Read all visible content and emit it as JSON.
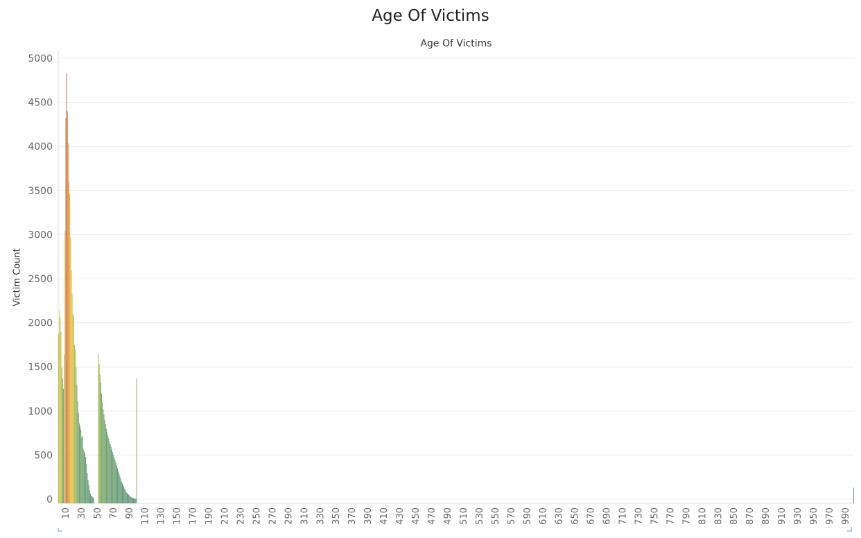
{
  "page": {
    "title": "Age Of Victims"
  },
  "chart_data": {
    "type": "bar",
    "title": "Age Of Victims",
    "subtitle": "Age Of Victims",
    "xlabel": "",
    "ylabel": "Victim Count",
    "ylim": [
      0,
      5000
    ],
    "y_ticks": [
      0,
      500,
      1000,
      1500,
      2000,
      2500,
      3000,
      3500,
      4000,
      4500,
      5000
    ],
    "x_tick_labels": [
      "10",
      "30",
      "50",
      "70",
      "90",
      "110",
      "130",
      "150",
      "170",
      "190",
      "210",
      "230",
      "250",
      "270",
      "290",
      "310",
      "330",
      "350",
      "370",
      "390",
      "410",
      "430",
      "450",
      "470",
      "490",
      "510",
      "530",
      "550",
      "570",
      "590",
      "610",
      "630",
      "650",
      "670",
      "690",
      "710",
      "730",
      "750",
      "770",
      "790",
      "810",
      "830",
      "850",
      "870",
      "890",
      "910",
      "930",
      "950",
      "970",
      "990"
    ],
    "grid": true,
    "color_scale": "low=green, mid=yellow/orange, high=red-brown (by count)",
    "x": [
      1,
      2,
      3,
      4,
      5,
      6,
      7,
      8,
      9,
      10,
      11,
      12,
      13,
      14,
      15,
      16,
      17,
      18,
      19,
      20,
      21,
      22,
      23,
      24,
      25,
      26,
      27,
      28,
      29,
      30,
      31,
      32,
      33,
      34,
      35,
      36,
      37,
      38,
      39,
      40,
      41,
      42,
      43,
      44,
      45,
      46,
      47,
      48,
      49,
      50,
      51,
      52,
      53,
      54,
      55,
      56,
      57,
      58,
      59,
      60,
      61,
      62,
      63,
      64,
      65,
      66,
      67,
      68,
      69,
      70,
      71,
      72,
      73,
      74,
      75,
      76,
      77,
      78,
      79,
      80,
      81,
      82,
      83,
      84,
      85,
      86,
      87,
      88,
      89,
      90,
      91,
      92,
      93,
      94,
      95,
      96,
      97,
      98,
      99,
      1000
    ],
    "values": [
      1880,
      2140,
      2060,
      1900,
      1490,
      1370,
      1250,
      1640,
      3040,
      4320,
      4830,
      4400,
      4040,
      3600,
      3460,
      2970,
      2600,
      2330,
      2100,
      2080,
      1750,
      1700,
      1500,
      1300,
      1110,
      980,
      860,
      830,
      790,
      700,
      720,
      570,
      540,
      520,
      480,
      400,
      300,
      220,
      160,
      100,
      60,
      40,
      30,
      20,
      10,
      0,
      0,
      0,
      0,
      0,
      1650,
      1530,
      1410,
      1320,
      1200,
      1100,
      1020,
      960,
      900,
      850,
      800,
      760,
      720,
      690,
      650,
      620,
      590,
      560,
      530,
      500,
      470,
      440,
      410,
      380,
      350,
      320,
      290,
      260,
      230,
      200,
      180,
      160,
      140,
      120,
      100,
      80,
      70,
      60,
      50,
      40,
      30,
      25,
      20,
      15,
      10,
      8,
      6,
      5,
      1370,
      130
    ]
  }
}
